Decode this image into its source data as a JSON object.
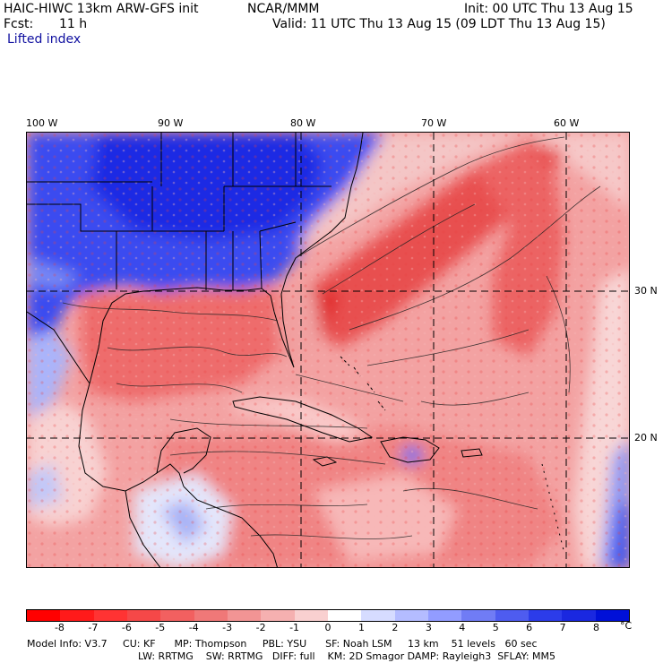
{
  "header": {
    "model": "HAIC-HIWC 13km ARW-GFS init",
    "org": "NCAR/MMM",
    "init": "Init: 00 UTC Thu 13 Aug 15",
    "fcst_label": "Fcst:",
    "fcst_value": "11 h",
    "valid": "Valid: 11 UTC Thu 13 Aug 15 (09 LDT Thu 13 Aug 15)",
    "field": "Lifted index"
  },
  "axes": {
    "lon_labels": [
      "100 W",
      "90 W",
      "80 W",
      "70 W",
      "60 W"
    ],
    "lat_labels": [
      "30 N",
      "20 N"
    ]
  },
  "colorbar": {
    "ticks": [
      "-8",
      "-7",
      "-6",
      "-5",
      "-4",
      "-3",
      "-2",
      "-1",
      "0",
      "1",
      "2",
      "3",
      "4",
      "5",
      "6",
      "7",
      "8"
    ],
    "unit": "°C",
    "colors": [
      "#ff0000",
      "#ff1a1a",
      "#ff3333",
      "#f54848",
      "#f26060",
      "#f07878",
      "#f29494",
      "#f5b0b0",
      "#f9d0d0",
      "#ffffff",
      "#d6dcff",
      "#b4bcff",
      "#929cff",
      "#707cf5",
      "#4e5cf0",
      "#2c3cea",
      "#1a28e0",
      "#0010d8"
    ]
  },
  "footer": {
    "line1": "Model Info: V3.7     CU: KF      MP: Thompson     PBL: YSU      SF: Noah LSM     13 km    51 levels   60 sec",
    "line2": "LW: RRTMG    SW: RRTMG   DIFF: full    KM: 2D Smagor DAMP: Rayleigh3  SFLAY: MM5"
  }
}
